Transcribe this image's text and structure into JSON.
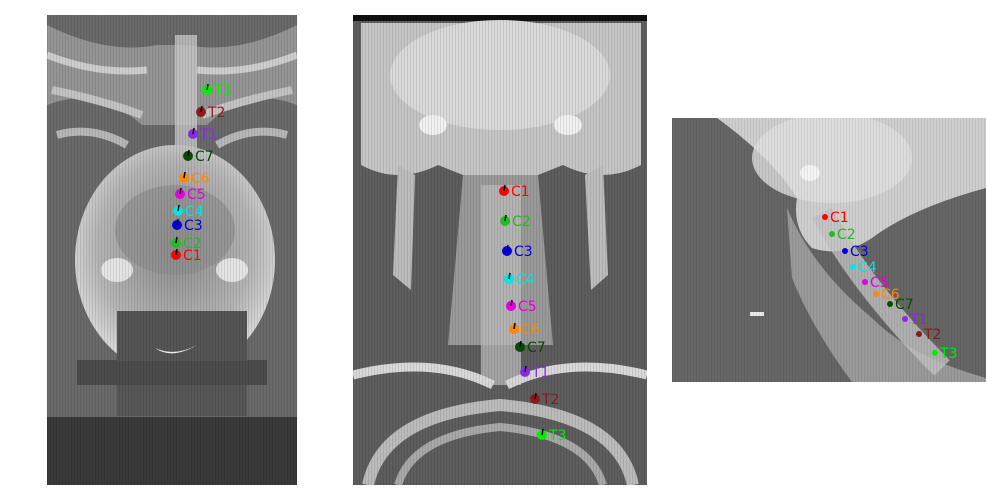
{
  "colors": {
    "C1": "#ff0000",
    "C2": "#22bb22",
    "C3": "#0000dd",
    "C4": "#00e5e5",
    "C5": "#e000e0",
    "C6": "#ff8800",
    "C7": "#004d00",
    "T1": "#8a2be2",
    "T2": "#8b1a1a",
    "T3": "#00ee00"
  },
  "views": [
    {
      "id": "coronal-back",
      "landmarks": [
        {
          "label": "T3",
          "key": "T3"
        },
        {
          "label": "T2",
          "key": "T2"
        },
        {
          "label": "T1",
          "key": "T1"
        },
        {
          "label": "C7",
          "key": "C7"
        },
        {
          "label": "C6",
          "key": "C6"
        },
        {
          "label": "C5",
          "key": "C5"
        },
        {
          "label": "C4",
          "key": "C4"
        },
        {
          "label": "C3",
          "key": "C3"
        },
        {
          "label": "C2",
          "key": "C2"
        },
        {
          "label": "C1",
          "key": "C1"
        }
      ]
    },
    {
      "id": "coronal-front",
      "landmarks": [
        {
          "label": "C1",
          "key": "C1"
        },
        {
          "label": "C2",
          "key": "C2"
        },
        {
          "label": "C3",
          "key": "C3"
        },
        {
          "label": "C4",
          "key": "C4"
        },
        {
          "label": "C5",
          "key": "C5"
        },
        {
          "label": "C6",
          "key": "C6"
        },
        {
          "label": "C7",
          "key": "C7"
        },
        {
          "label": "T1",
          "key": "T1"
        },
        {
          "label": "T2",
          "key": "T2"
        },
        {
          "label": "T3",
          "key": "T3"
        }
      ]
    },
    {
      "id": "sagittal",
      "landmarks": [
        {
          "label": "C1",
          "key": "C1"
        },
        {
          "label": "C2",
          "key": "C2"
        },
        {
          "label": "C3",
          "key": "C3"
        },
        {
          "label": "C4",
          "key": "C4"
        },
        {
          "label": "C5",
          "key": "C5"
        },
        {
          "label": "C6",
          "key": "C6"
        },
        {
          "label": "C7",
          "key": "C7"
        },
        {
          "label": "T1",
          "key": "T1"
        },
        {
          "label": "T2",
          "key": "T2"
        },
        {
          "label": "T3",
          "key": "T3"
        }
      ]
    }
  ]
}
